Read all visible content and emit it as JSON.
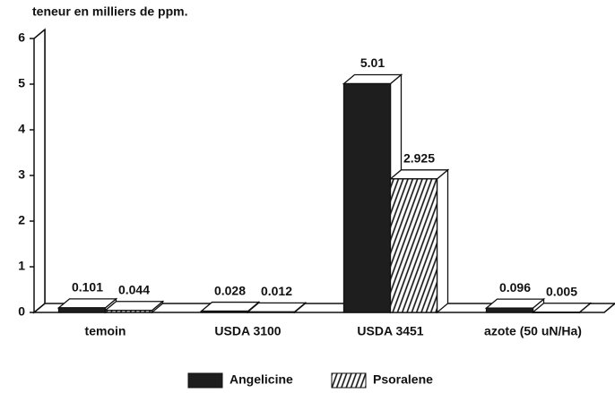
{
  "chart_data": {
    "type": "bar3d",
    "title": "teneur en milliers de ppm.",
    "categories": [
      "temoin",
      "USDA 3100",
      "USDA 3451",
      "azote (50 uN/Ha)"
    ],
    "series": [
      {
        "name": "Angelicine",
        "color": "#1e1e1e",
        "values": [
          0.101,
          0.028,
          5.01,
          0.096
        ]
      },
      {
        "name": "Psoralene",
        "color": "hatch",
        "values": [
          0.044,
          0.012,
          2.925,
          0.005
        ]
      }
    ],
    "ylim": [
      0,
      6
    ],
    "yticks": [
      0,
      1,
      2,
      3,
      4,
      5,
      6
    ],
    "legend": "bottom"
  }
}
